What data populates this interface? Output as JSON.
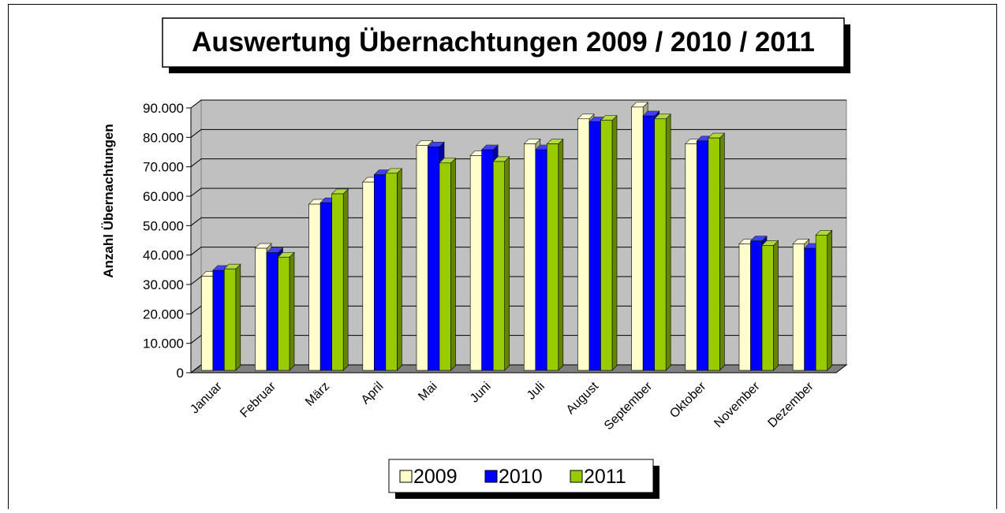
{
  "chart_data": {
    "type": "bar3d",
    "title": "Auswertung Übernachtungen 2009 / 2010 / 2011",
    "y_label": "Anzahl Übernachtungen",
    "categories": [
      "Januar",
      "Februar",
      "März",
      "April",
      "Mai",
      "Juni",
      "Juli",
      "August",
      "September",
      "Oktober",
      "November",
      "Dezember"
    ],
    "series": [
      {
        "name": "2009",
        "color": "#ffffcc",
        "values": [
          32000,
          41500,
          56500,
          64000,
          76500,
          73000,
          77000,
          85500,
          89500,
          77000,
          43000,
          43000
        ]
      },
      {
        "name": "2010",
        "color": "#0000ff",
        "values": [
          34000,
          40000,
          57000,
          66500,
          76000,
          75000,
          75000,
          84500,
          86500,
          78000,
          44000,
          41500
        ]
      },
      {
        "name": "2011",
        "color": "#99cc00",
        "values": [
          34500,
          38500,
          60000,
          67000,
          70500,
          71000,
          77000,
          85000,
          85500,
          79000,
          42500,
          46000
        ]
      }
    ],
    "ylim": [
      0,
      90000
    ],
    "yticks": [
      0,
      {
        "value": 10000,
        "label": "10.000"
      },
      {
        "value": 20000,
        "label": "20.000"
      },
      {
        "value": 30000,
        "label": "30.000"
      },
      {
        "value": 40000,
        "label": "40.000"
      },
      {
        "value": 50000,
        "label": "50.000"
      },
      {
        "value": 60000,
        "label": "60.000"
      },
      {
        "value": 70000,
        "label": "70.000"
      },
      {
        "value": 80000,
        "label": "80.000"
      },
      {
        "value": 90000,
        "label": "90.000"
      }
    ],
    "grid": true,
    "legend": "bottom"
  }
}
